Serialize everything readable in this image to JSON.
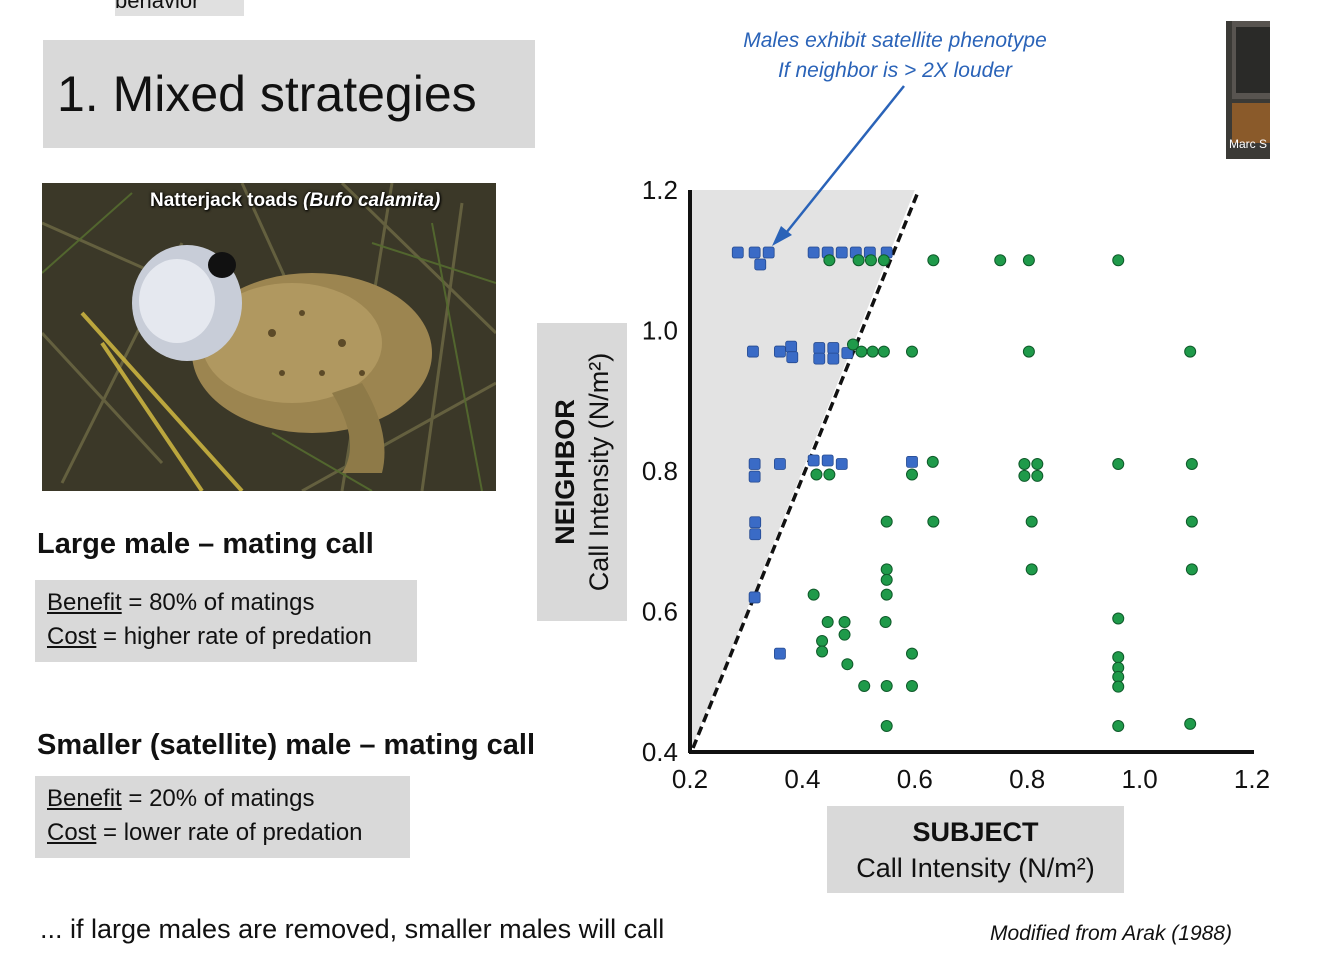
{
  "top_strip_text": "behavior",
  "slide": {
    "title": "1. Mixed strategies",
    "photo_caption_plain": "Natterjack toads ",
    "photo_caption_italic": "(Bufo calamita)",
    "large_male": {
      "heading": "Large male – mating call",
      "benefit_label": "Benefit",
      "benefit_text": " = 80% of matings",
      "cost_label": "Cost",
      "cost_text": " = higher rate of predation"
    },
    "small_male": {
      "heading": "Smaller (satellite) male – mating call",
      "benefit_label": "Benefit",
      "benefit_text": " = 20% of matings",
      "cost_label": "Cost",
      "cost_text": " = lower rate of predation"
    },
    "footer_text": "... if large males are removed, smaller males will call",
    "source_text": "Modified from Arak (1988)"
  },
  "annotation": {
    "line1": "Males exhibit satellite phenotype",
    "line2": "If neighbor is > 2X louder"
  },
  "video_thumb_name": "Marc S",
  "colors": {
    "satellite": "#3a6bc6",
    "caller": "#1f9a4a",
    "annotation": "#2a63b8",
    "shade": "#e3e3e3"
  },
  "chart_data": {
    "type": "scatter",
    "title": "",
    "xlabel_bold": "SUBJECT",
    "xlabel": "Call Intensity (N/m²)",
    "ylabel_bold": "NEIGHBOR",
    "ylabel": "Call Intensity (N/m²)",
    "xlim": [
      0.2,
      1.2
    ],
    "ylim": [
      0.4,
      1.2
    ],
    "x_ticks": [
      "0.2",
      "0.4",
      "0.6",
      "0.8",
      "1.0",
      "1.2"
    ],
    "y_ticks": [
      "0.4",
      "0.6",
      "0.8",
      "1.0",
      "1.2"
    ],
    "threshold_line": {
      "from": [
        0.2,
        0.4
      ],
      "to": [
        0.6,
        1.2
      ]
    },
    "series": [
      {
        "marker": "square",
        "points": [
          [
            0.285,
            1.111
          ],
          [
            0.315,
            1.111
          ],
          [
            0.34,
            1.111
          ],
          [
            0.325,
            1.094
          ],
          [
            0.42,
            1.111
          ],
          [
            0.445,
            1.111
          ],
          [
            0.47,
            1.111
          ],
          [
            0.495,
            1.111
          ],
          [
            0.52,
            1.111
          ],
          [
            0.55,
            1.111
          ],
          [
            0.312,
            0.97
          ],
          [
            0.36,
            0.97
          ],
          [
            0.38,
            0.977
          ],
          [
            0.382,
            0.962
          ],
          [
            0.43,
            0.975
          ],
          [
            0.455,
            0.975
          ],
          [
            0.43,
            0.96
          ],
          [
            0.455,
            0.96
          ],
          [
            0.48,
            0.968
          ],
          [
            0.315,
            0.81
          ],
          [
            0.315,
            0.792
          ],
          [
            0.36,
            0.81
          ],
          [
            0.42,
            0.815
          ],
          [
            0.445,
            0.815
          ],
          [
            0.47,
            0.81
          ],
          [
            0.595,
            0.813
          ],
          [
            0.316,
            0.727
          ],
          [
            0.316,
            0.71
          ],
          [
            0.315,
            0.62
          ],
          [
            0.36,
            0.54
          ]
        ]
      },
      {
        "marker": "circle",
        "points": [
          [
            0.448,
            1.1
          ],
          [
            0.5,
            1.1
          ],
          [
            0.522,
            1.1
          ],
          [
            0.545,
            1.1
          ],
          [
            0.633,
            1.1
          ],
          [
            0.752,
            1.1
          ],
          [
            0.803,
            1.1
          ],
          [
            0.962,
            1.1
          ],
          [
            0.49,
            0.98
          ],
          [
            0.505,
            0.97
          ],
          [
            0.525,
            0.97
          ],
          [
            0.545,
            0.97
          ],
          [
            0.595,
            0.97
          ],
          [
            0.803,
            0.97
          ],
          [
            1.09,
            0.97
          ],
          [
            0.425,
            0.795
          ],
          [
            0.448,
            0.795
          ],
          [
            0.595,
            0.795
          ],
          [
            0.632,
            0.813
          ],
          [
            0.795,
            0.81
          ],
          [
            0.818,
            0.81
          ],
          [
            0.795,
            0.793
          ],
          [
            0.818,
            0.793
          ],
          [
            0.962,
            0.81
          ],
          [
            1.093,
            0.81
          ],
          [
            0.55,
            0.728
          ],
          [
            0.633,
            0.728
          ],
          [
            0.808,
            0.728
          ],
          [
            1.093,
            0.728
          ],
          [
            0.55,
            0.66
          ],
          [
            0.55,
            0.645
          ],
          [
            0.808,
            0.66
          ],
          [
            1.093,
            0.66
          ],
          [
            0.42,
            0.624
          ],
          [
            0.55,
            0.624
          ],
          [
            0.445,
            0.585
          ],
          [
            0.475,
            0.585
          ],
          [
            0.548,
            0.585
          ],
          [
            0.962,
            0.59
          ],
          [
            0.475,
            0.567
          ],
          [
            0.435,
            0.558
          ],
          [
            0.435,
            0.543
          ],
          [
            0.595,
            0.54
          ],
          [
            0.962,
            0.535
          ],
          [
            0.48,
            0.525
          ],
          [
            0.962,
            0.52
          ],
          [
            0.962,
            0.507
          ],
          [
            0.962,
            0.493
          ],
          [
            0.51,
            0.494
          ],
          [
            0.55,
            0.494
          ],
          [
            0.595,
            0.494
          ],
          [
            0.55,
            0.437
          ],
          [
            0.962,
            0.437
          ],
          [
            1.09,
            0.44
          ]
        ]
      }
    ]
  }
}
